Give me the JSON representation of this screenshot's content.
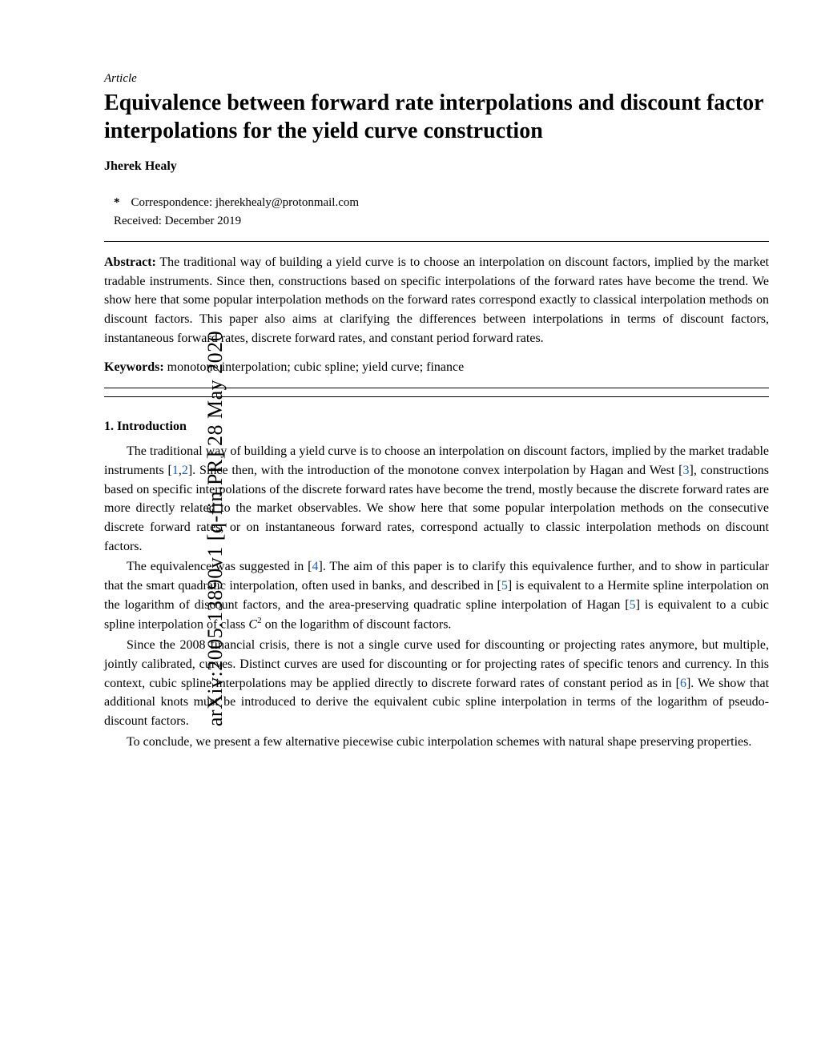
{
  "arxiv": {
    "id_line": "arXiv:2005.13890v1  [q-fin.PR]  28 May 2020"
  },
  "header": {
    "article_label": "Article",
    "title": "Equivalence between forward rate interpolations and discount factor interpolations for the yield curve construction",
    "author": "Jherek Healy",
    "correspondence_star": "*",
    "correspondence_label": "Correspondence: jherekhealy@protonmail.com",
    "received": "Received: December 2019"
  },
  "abstract": {
    "label": "Abstract:",
    "text": " The traditional way of building a yield curve is to choose an interpolation on discount factors, implied by the market tradable instruments. Since then, constructions based on specific interpolations of the forward rates have become the trend. We show here that some popular interpolation methods on the forward rates correspond exactly to classical interpolation methods on discount factors. This paper also aims at clarifying the differences between interpolations in terms of discount factors, instantaneous forward rates, discrete forward rates, and constant period forward rates."
  },
  "keywords": {
    "label": "Keywords:",
    "text": " monotone interpolation; cubic spline; yield curve; finance"
  },
  "section1": {
    "heading": "1. Introduction",
    "p1a": "The traditional way of building a yield curve is to choose an interpolation on discount factors, implied by the market tradable instruments [",
    "c1": "1",
    "p1b": ",",
    "c2": "2",
    "p1c": "]. Since then, with the introduction of the monotone convex interpolation by Hagan and West [",
    "c3": "3",
    "p1d": "], constructions based on specific interpolations of the discrete forward rates have become the trend, mostly because the discrete forward rates are more directly related to the market observables. We show here that some popular interpolation methods on the consecutive discrete forward rates, or on instantaneous forward rates, correspond actually to classic interpolation methods on discount factors.",
    "p2a": "The equivalence was suggested in [",
    "c4": "4",
    "p2b": "]. The aim of this paper is to clarify this equivalence further, and to show in particular that the smart quadratic interpolation, often used in banks, and described in [",
    "c5": "5",
    "p2c": "] is equivalent to a Hermite spline interpolation on the logarithm of discount factors, and the area-preserving quadratic spline interpolation of Hagan [",
    "c5b": "5",
    "p2d": "] is equivalent to a cubic spline interpolation of class ",
    "p2e": " on the logarithm of discount factors.",
    "p3a": "Since the 2008 financial crisis, there is not a single curve used for discounting or projecting rates anymore, but multiple, jointly calibrated, curves. Distinct curves are used for discounting or for projecting rates of specific tenors and currency. In this context, cubic spline interpolations may be applied directly to discrete forward rates of constant period as in [",
    "c6": "6",
    "p3b": "]. We show that additional knots must be introduced to derive the equivalent cubic spline interpolation in terms of the logarithm of pseudo-discount factors.",
    "p4": "To conclude, we present a few alternative piecewise cubic interpolation schemes with natural shape preserving properties."
  },
  "colors": {
    "cite": "#1a5fb4"
  }
}
